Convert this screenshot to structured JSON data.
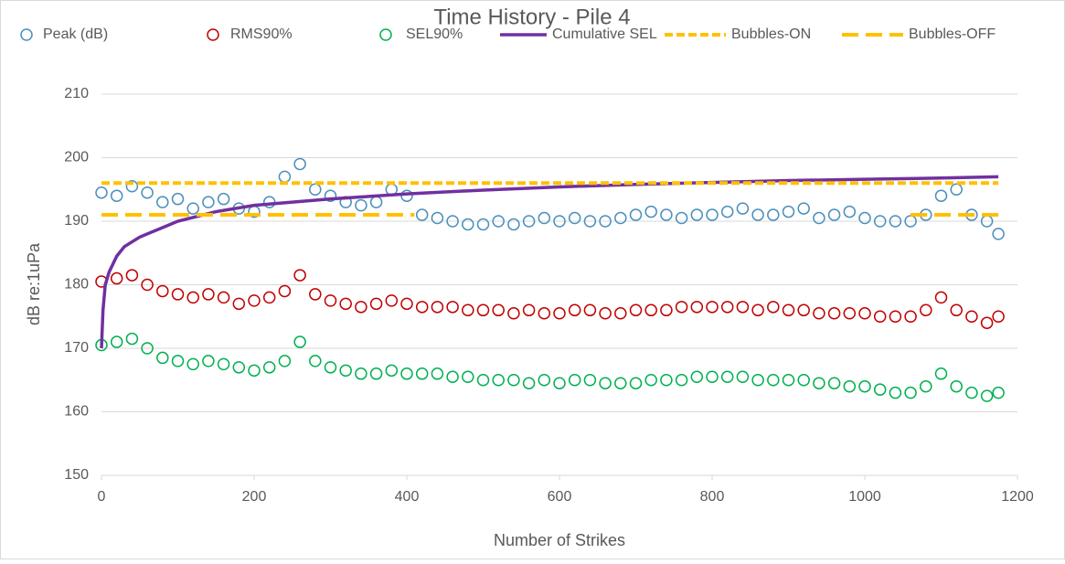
{
  "chart_data": {
    "type": "scatter",
    "title": "Time History - Pile 4",
    "x_label": "Number of Strikes",
    "y_label": "dB re:1uPa",
    "xlim": [
      0,
      1200
    ],
    "xticks": [
      0,
      200,
      400,
      600,
      800,
      1000,
      1200
    ],
    "ylim": [
      150,
      210
    ],
    "yticks": [
      150,
      160,
      170,
      180,
      190,
      200,
      210
    ],
    "grid": true,
    "legend": "top",
    "x": [
      0,
      20,
      40,
      60,
      80,
      100,
      120,
      140,
      160,
      180,
      200,
      220,
      240,
      260,
      280,
      300,
      320,
      340,
      360,
      380,
      400,
      420,
      440,
      460,
      480,
      500,
      520,
      540,
      560,
      580,
      600,
      620,
      640,
      660,
      680,
      700,
      720,
      740,
      760,
      780,
      800,
      820,
      840,
      860,
      880,
      900,
      920,
      940,
      960,
      980,
      1000,
      1020,
      1040,
      1060,
      1080,
      1100,
      1120,
      1140,
      1160,
      1175
    ],
    "series": [
      {
        "name": "Peak (dB)",
        "type": "scatter",
        "color": "#4a8fbd",
        "values": [
          194.5,
          194,
          195.5,
          194.5,
          193,
          193.5,
          192,
          193,
          193.5,
          192,
          191.5,
          193,
          197,
          199,
          195,
          194,
          193,
          192.5,
          193,
          195,
          194,
          191,
          190.5,
          190,
          189.5,
          189.5,
          190,
          189.5,
          190,
          190.5,
          190,
          190.5,
          190,
          190,
          190.5,
          191,
          191.5,
          191,
          190.5,
          191,
          191,
          191.5,
          192,
          191,
          191,
          191.5,
          192,
          190.5,
          191,
          191.5,
          190.5,
          190,
          190,
          190,
          191,
          194,
          195,
          191,
          190,
          188
        ]
      },
      {
        "name": "RMS90%",
        "type": "scatter",
        "color": "#c00000",
        "values": [
          180.5,
          181,
          181.5,
          180,
          179,
          178.5,
          178,
          178.5,
          178,
          177,
          177.5,
          178,
          179,
          181.5,
          178.5,
          177.5,
          177,
          176.5,
          177,
          177.5,
          177,
          176.5,
          176.5,
          176.5,
          176,
          176,
          176,
          175.5,
          176,
          175.5,
          175.5,
          176,
          176,
          175.5,
          175.5,
          176,
          176,
          176,
          176.5,
          176.5,
          176.5,
          176.5,
          176.5,
          176,
          176.5,
          176,
          176,
          175.5,
          175.5,
          175.5,
          175.5,
          175,
          175,
          175,
          176,
          178,
          176,
          175,
          174,
          175
        ]
      },
      {
        "name": "SEL90%",
        "type": "scatter",
        "color": "#00b050",
        "values": [
          170.5,
          171,
          171.5,
          170,
          168.5,
          168,
          167.5,
          168,
          167.5,
          167,
          166.5,
          167,
          168,
          171,
          168,
          167,
          166.5,
          166,
          166,
          166.5,
          166,
          166,
          166,
          165.5,
          165.5,
          165,
          165,
          165,
          164.5,
          165,
          164.5,
          165,
          165,
          164.5,
          164.5,
          164.5,
          165,
          165,
          165,
          165.5,
          165.5,
          165.5,
          165.5,
          165,
          165,
          165,
          165,
          164.5,
          164.5,
          164,
          164,
          163.5,
          163,
          163,
          164,
          166,
          164,
          163,
          162.5,
          163
        ]
      },
      {
        "name": "Cumulative SEL",
        "type": "line",
        "color": "#7030a0",
        "dash": "solid",
        "x": [
          0,
          2,
          5,
          10,
          20,
          30,
          50,
          80,
          100,
          150,
          200,
          250,
          300,
          400,
          500,
          600,
          700,
          800,
          900,
          1000,
          1100,
          1175
        ],
        "values": [
          170,
          176,
          180,
          182,
          184.5,
          186,
          187.5,
          189,
          190,
          191.5,
          192.5,
          193,
          193.5,
          194.3,
          194.9,
          195.4,
          195.8,
          196.1,
          196.4,
          196.6,
          196.8,
          197
        ]
      },
      {
        "name": "Bubbles-ON",
        "type": "line",
        "color": "#ffc000",
        "dash": "short",
        "x": [
          0,
          1175
        ],
        "values": [
          196,
          196
        ]
      },
      {
        "name": "Bubbles-OFF",
        "type": "line",
        "color": "#ffc000",
        "dash": "long",
        "x": [
          0,
          410,
          735,
          1060,
          1175
        ],
        "values": [
          191,
          191,
          null,
          191,
          191
        ]
      }
    ]
  }
}
